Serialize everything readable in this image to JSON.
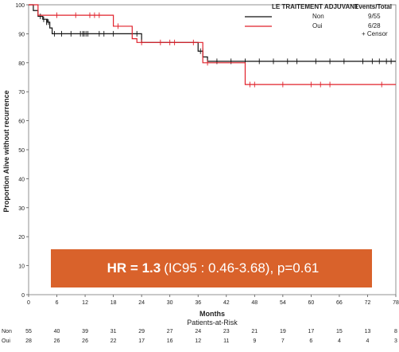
{
  "chart_data": {
    "type": "line",
    "subtype": "kaplan-meier",
    "ylabel": "Proportion Alive without recurrence",
    "xlabel": "Months",
    "xlim": [
      0,
      78
    ],
    "ylim": [
      0,
      100
    ],
    "x_ticks": [
      "0",
      "6",
      "12",
      "18",
      "24",
      "30",
      "36",
      "42",
      "48",
      "54",
      "60",
      "66",
      "72",
      "78"
    ],
    "y_ticks": [
      "0",
      "10",
      "20",
      "30",
      "40",
      "50",
      "60",
      "70",
      "80",
      "90",
      "100"
    ],
    "legend": {
      "title": "LE TRAITEMENT ADJUVANT",
      "events_header": "Events/Total",
      "position": "top-right",
      "censor_label": "+  Censor"
    },
    "series": [
      {
        "name": "Non",
        "events_total": "9/55",
        "color": "#111111",
        "steps": [
          [
            0,
            100
          ],
          [
            1,
            98
          ],
          [
            2,
            96
          ],
          [
            3,
            95
          ],
          [
            4,
            94
          ],
          [
            4.5,
            92
          ],
          [
            5,
            90
          ],
          [
            24,
            87
          ],
          [
            36,
            84
          ],
          [
            37,
            82
          ],
          [
            38,
            80.5
          ],
          [
            78,
            80.5
          ]
        ],
        "censors": [
          [
            2.5,
            96
          ],
          [
            3.2,
            95
          ],
          [
            3.8,
            94
          ],
          [
            4.2,
            94
          ],
          [
            5.5,
            90
          ],
          [
            7,
            90
          ],
          [
            9,
            90
          ],
          [
            11,
            90
          ],
          [
            11.5,
            90
          ],
          [
            11.8,
            90
          ],
          [
            12.2,
            90
          ],
          [
            12.6,
            90
          ],
          [
            15,
            90
          ],
          [
            16,
            90
          ],
          [
            18,
            90
          ],
          [
            23,
            90
          ],
          [
            36.5,
            84
          ],
          [
            37,
            84
          ],
          [
            40,
            80.5
          ],
          [
            43,
            80.5
          ],
          [
            46,
            80.5
          ],
          [
            49,
            80.5
          ],
          [
            52,
            80.5
          ],
          [
            55,
            80.5
          ],
          [
            57,
            80.5
          ],
          [
            61,
            80.5
          ],
          [
            64,
            80.5
          ],
          [
            67,
            80.5
          ],
          [
            71,
            80.5
          ],
          [
            73,
            80.5
          ],
          [
            74.5,
            80.5
          ],
          [
            76,
            80.5
          ],
          [
            77,
            80.5
          ]
        ]
      },
      {
        "name": "Oui",
        "events_total": "6/28",
        "color": "#e0202a",
        "steps": [
          [
            0,
            100
          ],
          [
            2,
            96.4
          ],
          [
            18,
            92.6
          ],
          [
            22,
            88.3
          ],
          [
            23,
            87
          ],
          [
            37,
            80
          ],
          [
            46,
            72.5
          ],
          [
            78,
            72.5
          ]
        ],
        "censors": [
          [
            6,
            96.4
          ],
          [
            10,
            96.4
          ],
          [
            13,
            96.4
          ],
          [
            14,
            96.4
          ],
          [
            15,
            96.4
          ],
          [
            19,
            92.6
          ],
          [
            24,
            87
          ],
          [
            28,
            87
          ],
          [
            30,
            87
          ],
          [
            31,
            87
          ],
          [
            35,
            87
          ],
          [
            38,
            80
          ],
          [
            47,
            72.5
          ],
          [
            48,
            72.5
          ],
          [
            54,
            72.5
          ],
          [
            60,
            72.5
          ],
          [
            62,
            72.5
          ],
          [
            64,
            72.5
          ],
          [
            75,
            72.5
          ]
        ]
      }
    ]
  },
  "hazard_ratio": {
    "label": "HR = 1.3",
    "detail": "(IC95 : 0.46-3.68), p=0.61",
    "bg_color": "#d9622b"
  },
  "risk_table": {
    "title": "Patients-at-Risk",
    "rows": [
      {
        "label": "Non",
        "counts": [
          "55",
          "40",
          "39",
          "31",
          "29",
          "27",
          "24",
          "23",
          "21",
          "19",
          "17",
          "15",
          "13",
          "8"
        ]
      },
      {
        "label": "Oui",
        "counts": [
          "28",
          "26",
          "26",
          "22",
          "17",
          "16",
          "12",
          "11",
          "9",
          "7",
          "6",
          "4",
          "4",
          "3"
        ]
      }
    ]
  }
}
